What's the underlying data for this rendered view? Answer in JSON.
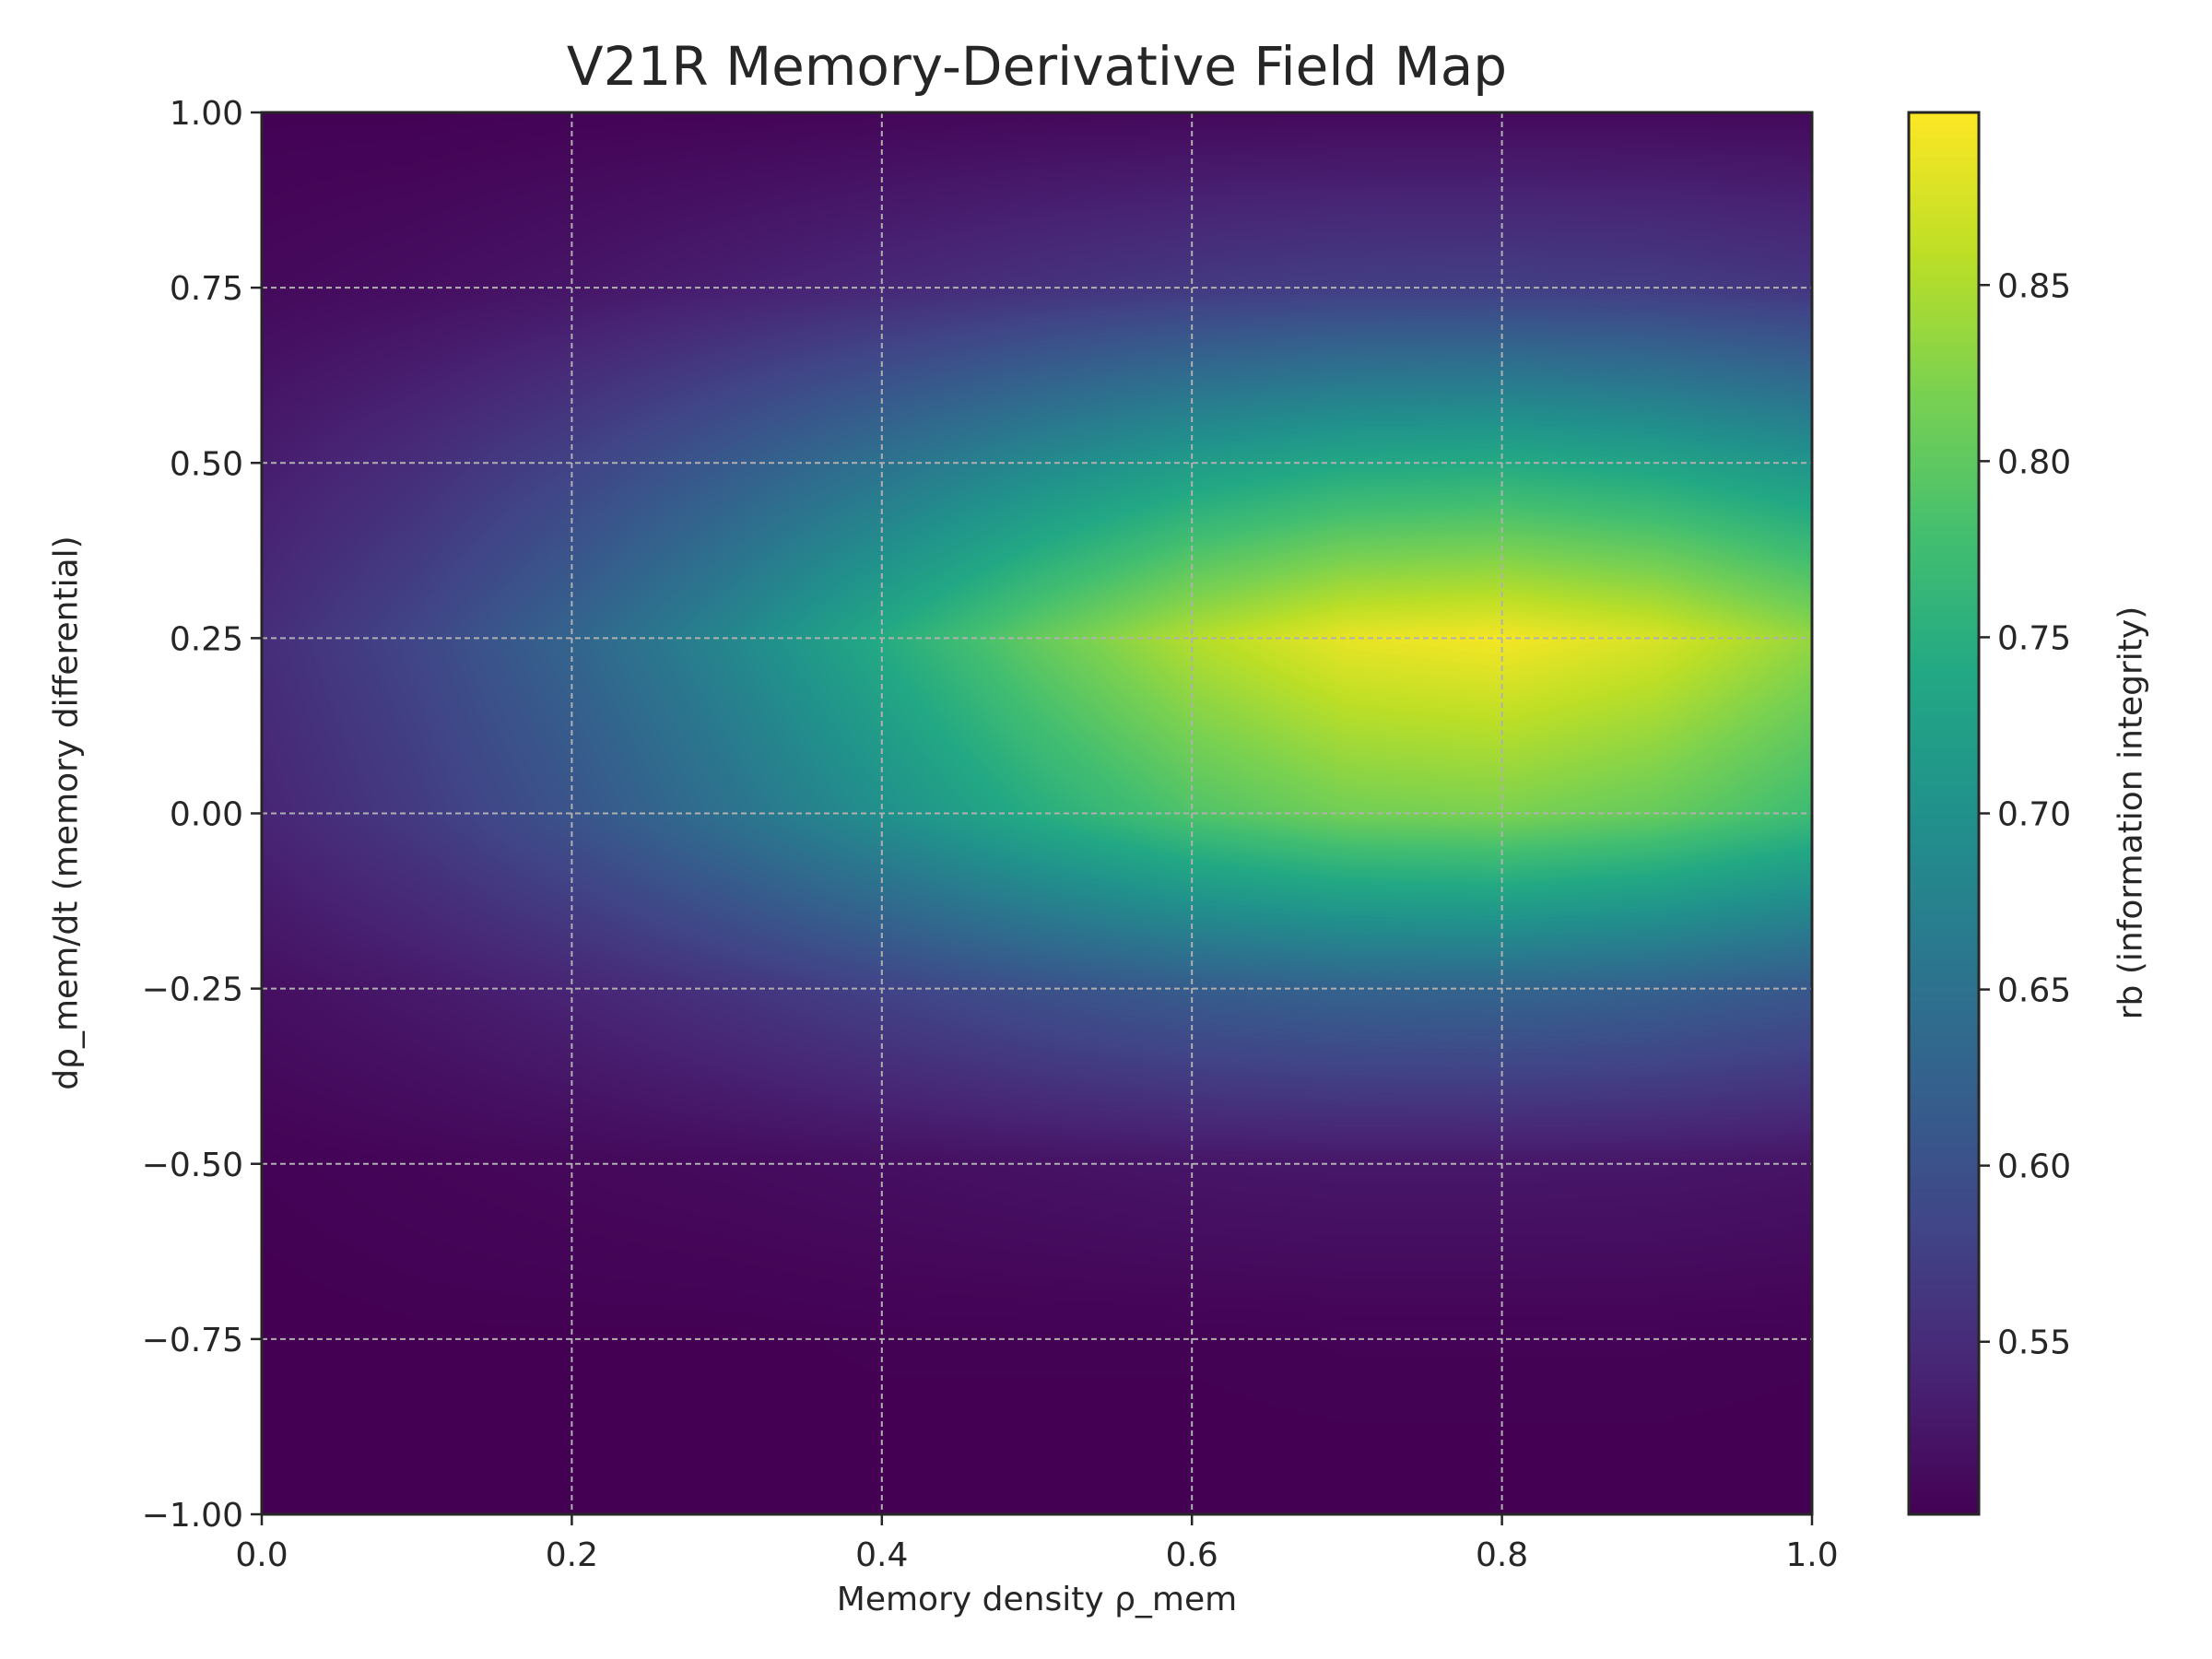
{
  "chart_data": {
    "type": "heatmap",
    "title": "V21R Memory-Derivative Field Map",
    "xlabel": "Memory density ρ_mem",
    "ylabel": "dρ_mem/dt (memory differential)",
    "colorbar_label": "rb (information integrity)",
    "colormap": "viridis",
    "xlim": [
      0.0,
      1.0
    ],
    "ylim": [
      -1.0,
      1.0
    ],
    "clim": [
      0.501,
      0.899
    ],
    "grid": true,
    "xticks": [
      "0.0",
      "0.2",
      "0.4",
      "0.6",
      "0.8",
      "1.0"
    ],
    "yticks": [
      "1.00",
      "0.75",
      "0.50",
      "0.25",
      "0.00",
      "−0.25",
      "−0.50",
      "−0.75",
      "−1.00"
    ],
    "colorbar_ticks": [
      "0.85",
      "0.80",
      "0.75",
      "0.70",
      "0.65",
      "0.60",
      "0.55"
    ],
    "x": [
      0.0,
      0.1,
      0.2,
      0.3,
      0.4,
      0.5,
      0.6,
      0.7,
      0.8,
      0.9,
      1.0
    ],
    "y": [
      1.0,
      0.75,
      0.5,
      0.25,
      0.0,
      -0.25,
      -0.5,
      -0.75,
      -1.0
    ],
    "z": [
      [
        0.502,
        0.502,
        0.504,
        0.505,
        0.507,
        0.509,
        0.51,
        0.511,
        0.511,
        0.511,
        0.51
      ],
      [
        0.51,
        0.516,
        0.524,
        0.535,
        0.546,
        0.557,
        0.567,
        0.573,
        0.574,
        0.571,
        0.563
      ],
      [
        0.532,
        0.552,
        0.579,
        0.613,
        0.65,
        0.687,
        0.718,
        0.738,
        0.743,
        0.731,
        0.707
      ],
      [
        0.552,
        0.584,
        0.629,
        0.683,
        0.744,
        0.804,
        0.854,
        0.886,
        0.894,
        0.876,
        0.836
      ],
      [
        0.542,
        0.569,
        0.604,
        0.649,
        0.698,
        0.747,
        0.788,
        0.814,
        0.82,
        0.805,
        0.773
      ],
      [
        0.517,
        0.528,
        0.542,
        0.56,
        0.58,
        0.6,
        0.617,
        0.627,
        0.63,
        0.624,
        0.611
      ],
      [
        0.503,
        0.506,
        0.509,
        0.512,
        0.516,
        0.52,
        0.524,
        0.526,
        0.526,
        0.525,
        0.522
      ],
      [
        0.5,
        0.501,
        0.501,
        0.501,
        0.502,
        0.502,
        0.502,
        0.503,
        0.503,
        0.503,
        0.502
      ],
      [
        0.5,
        0.5,
        0.5,
        0.5,
        0.5,
        0.5,
        0.5,
        0.5,
        0.5,
        0.5,
        0.5
      ]
    ]
  }
}
